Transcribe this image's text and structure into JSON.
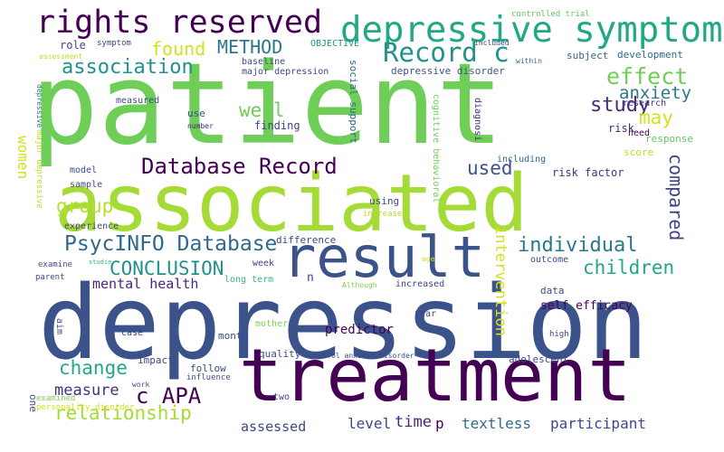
{
  "words": [
    {
      "text": "patient",
      "color": "#6ece58"
    },
    {
      "text": "depression",
      "color": "#3b528b"
    },
    {
      "text": "associated",
      "color": "#a5db36"
    },
    {
      "text": "treatment",
      "color": "#440154"
    },
    {
      "text": "result",
      "color": "#3b528b"
    },
    {
      "text": "depressive symptom",
      "color": "#22a884"
    },
    {
      "text": "rights reserved",
      "color": "#440154"
    },
    {
      "text": "Database Record",
      "color": "#440154"
    },
    {
      "text": "PsycINFO Database",
      "color": "#31688e"
    },
    {
      "text": "Record c",
      "color": "#21918c"
    },
    {
      "text": "association",
      "color": "#21918c"
    },
    {
      "text": "CONCLUSION",
      "color": "#21918c"
    },
    {
      "text": "relationship",
      "color": "#a5db36"
    },
    {
      "text": "c APA",
      "color": "#440154"
    },
    {
      "text": "effect",
      "color": "#6ece58"
    },
    {
      "text": "individual",
      "color": "#2a788e"
    },
    {
      "text": "children",
      "color": "#22a884"
    },
    {
      "text": "study",
      "color": "#482878"
    },
    {
      "text": "may",
      "color": "#d2e21b"
    },
    {
      "text": "anxiety",
      "color": "#2a788e"
    },
    {
      "text": "METHOD",
      "color": "#2a788e"
    },
    {
      "text": "found",
      "color": "#d2e21b"
    },
    {
      "text": "well",
      "color": "#6ece58"
    },
    {
      "text": "group",
      "color": "#b5de2b"
    },
    {
      "text": "change",
      "color": "#22a884"
    },
    {
      "text": "measure",
      "color": "#472f7d"
    },
    {
      "text": "used",
      "color": "#3b528b"
    },
    {
      "text": "compared",
      "color": "#414487"
    },
    {
      "text": "intervention",
      "color": "#d2e21b"
    },
    {
      "text": "mental health",
      "color": "#482878"
    },
    {
      "text": "women",
      "color": "#d2e21b"
    },
    {
      "text": "participant",
      "color": "#3e4989"
    },
    {
      "text": "textless",
      "color": "#31688e"
    },
    {
      "text": "level",
      "color": "#3e4989"
    },
    {
      "text": "time",
      "color": "#482878"
    },
    {
      "text": "assessed",
      "color": "#3e4989"
    },
    {
      "text": "p",
      "color": "#440154"
    },
    {
      "text": "self efficacy",
      "color": "#440154"
    },
    {
      "text": "risk factor",
      "color": "#46337e"
    },
    {
      "text": "risk",
      "color": "#482878"
    },
    {
      "text": "OBJECTIVE",
      "color": "#21918c"
    },
    {
      "text": "baseline",
      "color": "#3e4989"
    },
    {
      "text": "major depression",
      "color": "#3e4989"
    },
    {
      "text": "depressive disorder",
      "color": "#3b528b"
    },
    {
      "text": "subject",
      "color": "#31688e"
    },
    {
      "text": "development",
      "color": "#31688e"
    },
    {
      "text": "social support",
      "color": "#31688e"
    },
    {
      "text": "diagnosi",
      "color": "#482878"
    },
    {
      "text": "response",
      "color": "#5ec962"
    },
    {
      "text": "score",
      "color": "#b5de2b"
    },
    {
      "text": "research",
      "color": "#46337e"
    },
    {
      "text": "need",
      "color": "#440154"
    },
    {
      "text": "including",
      "color": "#31688e"
    },
    {
      "text": "cognitive behavioral",
      "color": "#6ece58"
    },
    {
      "text": "finding",
      "color": "#3e4989"
    },
    {
      "text": "use",
      "color": "#3e4989"
    },
    {
      "text": "number",
      "color": "#482878"
    },
    {
      "text": "measured",
      "color": "#3e4989"
    },
    {
      "text": "role",
      "color": "#414487"
    },
    {
      "text": "symptom",
      "color": "#414487"
    },
    {
      "text": "assessment",
      "color": "#bddf26"
    },
    {
      "text": "controlled trial",
      "color": "#5ec962"
    },
    {
      "text": "included",
      "color": "#3e4989"
    },
    {
      "text": "within",
      "color": "#31688e"
    },
    {
      "text": "major depressive",
      "color": "#b5de2b"
    },
    {
      "text": "depressive",
      "color": "#2a788e"
    },
    {
      "text": "model",
      "color": "#3e4989"
    },
    {
      "text": "sample",
      "color": "#3e4989"
    },
    {
      "text": "experience",
      "color": "#3e4989"
    },
    {
      "text": "difference",
      "color": "#3e4989"
    },
    {
      "text": "examine",
      "color": "#3e4989"
    },
    {
      "text": "parent",
      "color": "#3e4989"
    },
    {
      "text": "studie",
      "color": "#35b779"
    },
    {
      "text": "week",
      "color": "#3e4989"
    },
    {
      "text": "long term",
      "color": "#35b779"
    },
    {
      "text": "n",
      "color": "#414487"
    },
    {
      "text": "age",
      "color": "#d2e21b"
    },
    {
      "text": "Although",
      "color": "#7ad151"
    },
    {
      "text": "increased",
      "color": "#3e4989"
    },
    {
      "text": "outcome",
      "color": "#3e4989"
    },
    {
      "text": "using",
      "color": "#3e4989"
    },
    {
      "text": "increase",
      "color": "#b5de2b"
    },
    {
      "text": "data",
      "color": "#3e4989"
    },
    {
      "text": "aim",
      "color": "#3e4989"
    },
    {
      "text": "mother",
      "color": "#7ad151"
    },
    {
      "text": "year",
      "color": "#3e4989"
    },
    {
      "text": "predictor",
      "color": "#440154"
    },
    {
      "text": "case",
      "color": "#3e4989"
    },
    {
      "text": "high",
      "color": "#3e4989"
    },
    {
      "text": "month",
      "color": "#3e4989"
    },
    {
      "text": "quality",
      "color": "#3e4989"
    },
    {
      "text": "impact",
      "color": "#3e4989"
    },
    {
      "text": "follow",
      "color": "#3e4989"
    },
    {
      "text": "influence",
      "color": "#3e4989"
    },
    {
      "text": "control anxiety disorder",
      "color": "#3e4989"
    },
    {
      "text": "adolescent",
      "color": "#3e4989"
    },
    {
      "text": "work",
      "color": "#3e4989"
    },
    {
      "text": "examined",
      "color": "#7ad151"
    },
    {
      "text": "two",
      "color": "#3e4989"
    },
    {
      "text": "one",
      "color": "#3e4989"
    },
    {
      "text": "personality disorder",
      "color": "#d2e21b"
    }
  ]
}
